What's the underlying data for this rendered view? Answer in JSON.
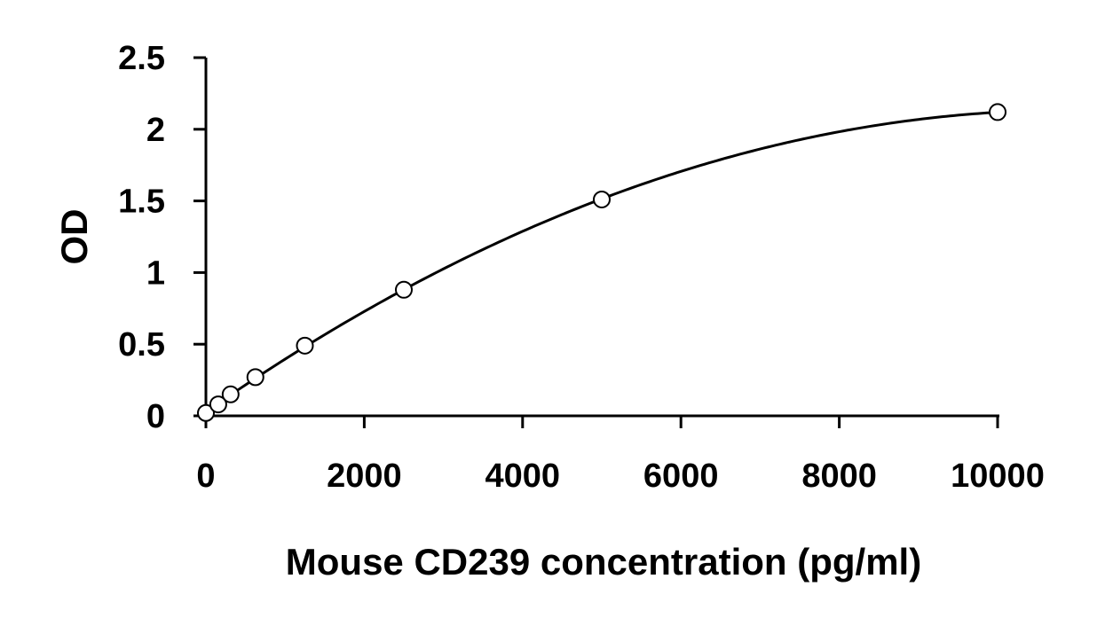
{
  "chart_data": {
    "type": "scatter",
    "title": "",
    "xlabel": "Mouse CD239 concentration (pg/ml)",
    "ylabel": "OD",
    "xlim": [
      0,
      10000
    ],
    "ylim": [
      0,
      2.5
    ],
    "xticks": [
      0,
      2000,
      4000,
      6000,
      8000,
      10000
    ],
    "xtick_labels": [
      "0",
      "2000",
      "4000",
      "6000",
      "8000",
      "10000"
    ],
    "yticks": [
      0,
      0.5,
      1,
      1.5,
      2,
      2.5
    ],
    "ytick_labels": [
      "0",
      "0.5",
      "1",
      "1.5",
      "2",
      "2.5"
    ],
    "grid": false,
    "legend": "none",
    "series": [
      {
        "x": [
          0,
          156,
          312,
          625,
          1250,
          2500,
          5000,
          10000
        ],
        "y": [
          0.02,
          0.08,
          0.15,
          0.27,
          0.49,
          0.88,
          1.51,
          2.12
        ],
        "marker": "open-circle",
        "trendline": "smooth-fit"
      }
    ],
    "colors": {
      "marker_edge": "#000000",
      "marker_fill": "#ffffff",
      "line": "#000000"
    }
  }
}
